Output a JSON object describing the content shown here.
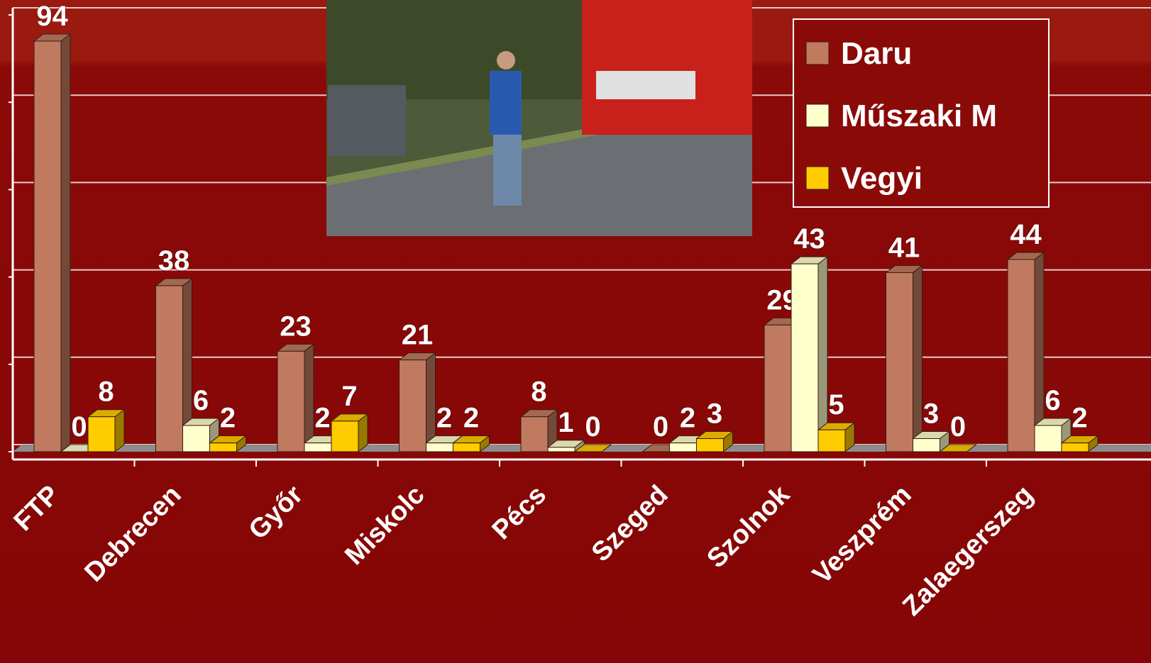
{
  "chart_data": {
    "type": "bar3d",
    "categories": [
      "FTP",
      "Debrecen",
      "Győr",
      "Miskolc",
      "Pécs",
      "Szeged",
      "Szolnok",
      "Veszprém",
      "Zalaegerszeg"
    ],
    "series": [
      {
        "name": "Daru",
        "color": "#c07a60",
        "values": [
          94,
          38,
          23,
          21,
          8,
          0,
          29,
          41,
          44
        ]
      },
      {
        "name": "Műszaki M",
        "color": "#ffffcc",
        "values": [
          0,
          6,
          2,
          2,
          1,
          2,
          43,
          3,
          6
        ]
      },
      {
        "name": "Vegyi",
        "color": "#ffcc00",
        "values": [
          8,
          2,
          7,
          2,
          0,
          3,
          5,
          0,
          2
        ]
      }
    ],
    "ylim": [
      0,
      100
    ],
    "yticks": [
      0,
      20,
      40,
      60,
      80,
      100
    ],
    "grid": true,
    "legend": "upper right"
  }
}
